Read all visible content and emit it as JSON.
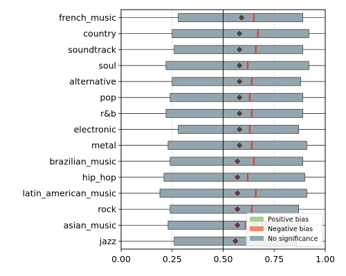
{
  "chart_data": {
    "type": "boxplot-horizontal",
    "categories": [
      "french_music",
      "country",
      "soundtrack",
      "soul",
      "alternative",
      "pop",
      "r&b",
      "electronic",
      "metal",
      "brazilian_music",
      "hip_hop",
      "latin_american_music",
      "rock",
      "asian_music",
      "jazz"
    ],
    "series": [
      {
        "category": "french_music",
        "q1": 0.28,
        "q3": 0.89,
        "median": 0.65,
        "mean": 0.59,
        "significance": "none"
      },
      {
        "category": "country",
        "q1": 0.25,
        "q3": 0.92,
        "median": 0.67,
        "mean": 0.58,
        "significance": "none"
      },
      {
        "category": "soundtrack",
        "q1": 0.26,
        "q3": 0.89,
        "median": 0.66,
        "mean": 0.58,
        "significance": "none"
      },
      {
        "category": "soul",
        "q1": 0.22,
        "q3": 0.92,
        "median": 0.62,
        "mean": 0.58,
        "significance": "none"
      },
      {
        "category": "alternative",
        "q1": 0.25,
        "q3": 0.88,
        "median": 0.64,
        "mean": 0.58,
        "significance": "none"
      },
      {
        "category": "pop",
        "q1": 0.24,
        "q3": 0.89,
        "median": 0.63,
        "mean": 0.58,
        "significance": "none"
      },
      {
        "category": "r&b",
        "q1": 0.22,
        "q3": 0.89,
        "median": 0.64,
        "mean": 0.58,
        "significance": "none"
      },
      {
        "category": "electronic",
        "q1": 0.28,
        "q3": 0.87,
        "median": 0.63,
        "mean": 0.58,
        "significance": "none"
      },
      {
        "category": "metal",
        "q1": 0.23,
        "q3": 0.91,
        "median": 0.64,
        "mean": 0.58,
        "significance": "none"
      },
      {
        "category": "brazilian_music",
        "q1": 0.24,
        "q3": 0.89,
        "median": 0.65,
        "mean": 0.57,
        "significance": "none"
      },
      {
        "category": "hip_hop",
        "q1": 0.21,
        "q3": 0.9,
        "median": 0.62,
        "mean": 0.57,
        "significance": "none"
      },
      {
        "category": "latin_american_music",
        "q1": 0.19,
        "q3": 0.91,
        "median": 0.66,
        "mean": 0.57,
        "significance": "none"
      },
      {
        "category": "rock",
        "q1": 0.24,
        "q3": 0.87,
        "median": 0.64,
        "mean": 0.57,
        "significance": "none"
      },
      {
        "category": "asian_music",
        "q1": 0.23,
        "q3": 0.88,
        "median": 0.61,
        "mean": 0.57,
        "significance": "none"
      },
      {
        "category": "jazz",
        "q1": 0.26,
        "q3": 0.86,
        "median": 0.62,
        "mean": 0.56,
        "significance": "none"
      }
    ],
    "xlim": [
      0.0,
      1.0
    ],
    "xticks": [
      "0.00",
      "0.25",
      "0.50",
      "0.75",
      "1.00"
    ],
    "reference_line_x": 0.5,
    "grid": "vertical dotted at 0.25 and 0.75",
    "legend": {
      "placement": "bottom-right",
      "entries": [
        {
          "label": "Positive bias",
          "color": "#a8d08d"
        },
        {
          "label": "Negative bias",
          "color": "#f4876b"
        },
        {
          "label": "No significance",
          "color": "#94a5ae"
        }
      ]
    },
    "colors": {
      "box": "#94a5ae",
      "median": "#e0352b",
      "mean_marker": "#222222"
    }
  }
}
